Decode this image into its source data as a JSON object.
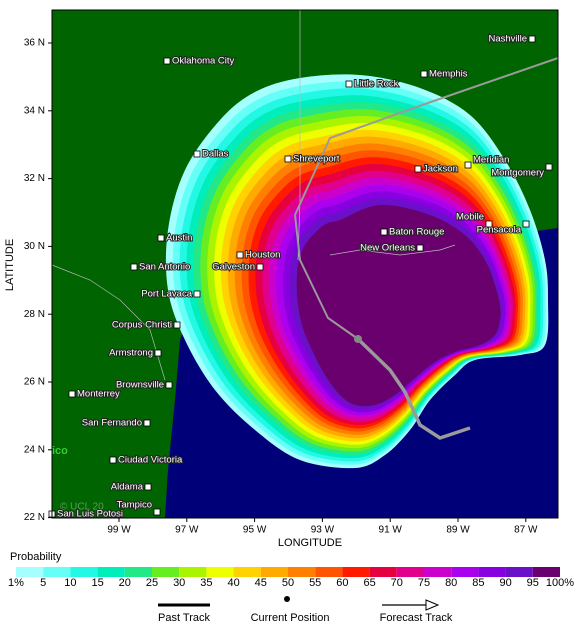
{
  "axes": {
    "x_label": "LONGITUDE",
    "y_label": "LATITUDE",
    "xticks": [
      {
        "value": 99,
        "label": "99 W"
      },
      {
        "value": 97,
        "label": "97 W"
      },
      {
        "value": 95,
        "label": "95 W"
      },
      {
        "value": 93,
        "label": "93 W"
      },
      {
        "value": 91,
        "label": "91 W"
      },
      {
        "value": 89,
        "label": "89 W"
      },
      {
        "value": 87,
        "label": "87 W"
      }
    ],
    "yticks": [
      {
        "value": 36,
        "label": "36 N"
      },
      {
        "value": 34,
        "label": "34 N"
      },
      {
        "value": 32,
        "label": "32 N"
      },
      {
        "value": 30,
        "label": "30 N"
      },
      {
        "value": 28,
        "label": "28 N"
      },
      {
        "value": 26,
        "label": "26 N"
      },
      {
        "value": 24,
        "label": "24 N"
      },
      {
        "value": 22,
        "label": "22 N"
      }
    ]
  },
  "cities": [
    "Nashville",
    "Oklahoma City",
    "Memphis",
    "Little Rock",
    "Dallas",
    "Shreveport",
    "Jackson",
    "Meridian",
    "Montgomery",
    "Mobile",
    "Pensacola",
    "Baton Rouge",
    "New Orleans",
    "Austin",
    "Houston",
    "Galveston",
    "San Antonio",
    "Port Lavaca",
    "Corpus Christi",
    "Armstrong",
    "Brownsville",
    "Monterrey",
    "San Fernando",
    "Ciudad Victoria",
    "Aldama",
    "Tampico",
    "San Luis Potosi"
  ],
  "map_labels": [
    "ico",
    "© UCL 20"
  ],
  "legend": {
    "title": "Probability",
    "levels": [
      {
        "value": 1,
        "label": "1%"
      },
      5,
      10,
      15,
      20,
      25,
      30,
      35,
      40,
      45,
      50,
      55,
      60,
      65,
      70,
      75,
      80,
      85,
      90,
      95,
      {
        "value": 100,
        "label": "100%"
      }
    ],
    "colors": [
      "#a6ffff",
      "#66fff8",
      "#22f8e4",
      "#00eebb",
      "#22e888",
      "#66ee22",
      "#aaf400",
      "#eeff00",
      "#ffd200",
      "#ffaa00",
      "#ff8000",
      "#ff5500",
      "#ff1a00",
      "#e60040",
      "#e0008c",
      "#cc00cc",
      "#aa00ee",
      "#8800e0",
      "#6a10c8",
      "#6a006e"
    ]
  },
  "track_legend": [
    "Past Track",
    "Current Position",
    "Forecast Track"
  ]
}
